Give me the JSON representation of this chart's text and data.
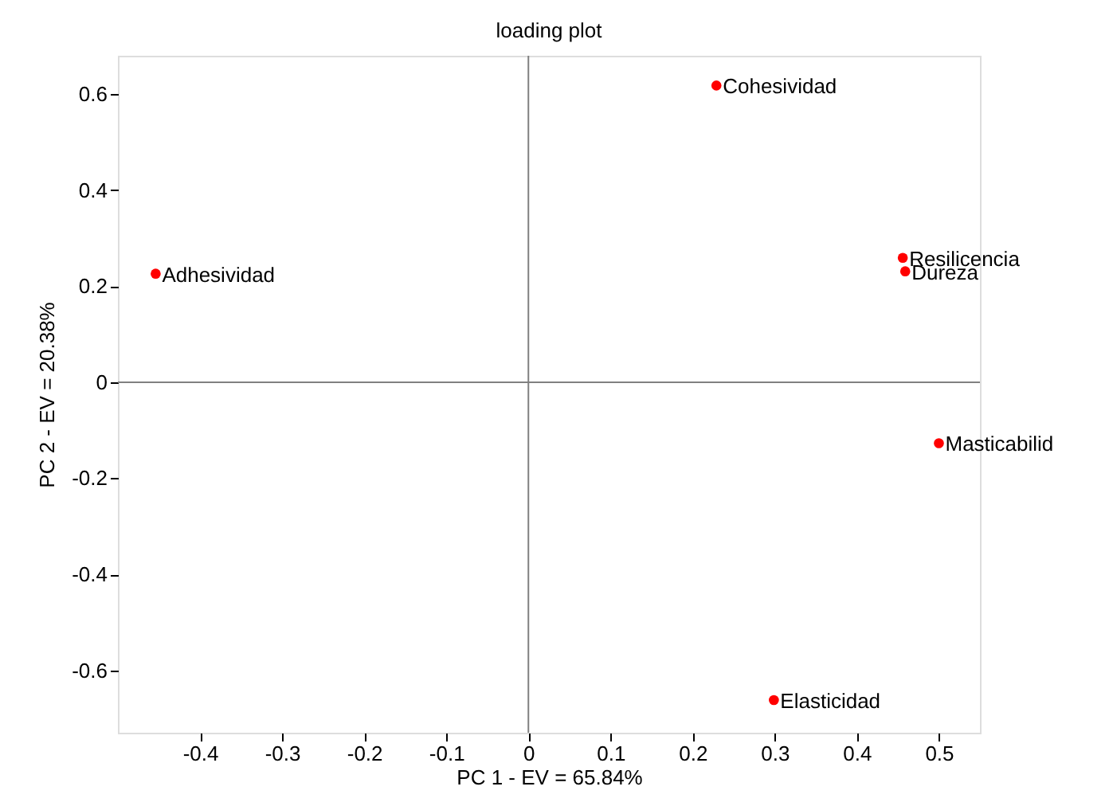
{
  "chart_data": {
    "type": "scatter",
    "title": "loading plot",
    "xlabel": "PC 1 - EV = 65.84%",
    "ylabel": "PC 2 - EV = 20.38%",
    "x": [
      -0.454,
      0.229,
      0.456,
      0.459,
      0.5,
      0.299
    ],
    "series": [
      {
        "color": "#ff0000",
        "values": [
          0.226,
          0.618,
          0.259,
          0.231,
          -0.127,
          -0.662
        ]
      }
    ],
    "annotations": [
      {
        "text": "Adhesividad",
        "x": -0.454,
        "y": 0.226
      },
      {
        "text": "Cohesividad",
        "x": 0.229,
        "y": 0.618
      },
      {
        "text": "Resilicencia",
        "x": 0.456,
        "y": 0.259
      },
      {
        "text": "Dureza",
        "x": 0.459,
        "y": 0.231
      },
      {
        "text": "Masticabilid",
        "x": 0.5,
        "y": -0.127
      },
      {
        "text": "Elasticidad",
        "x": 0.299,
        "y": -0.662
      }
    ],
    "xlim": [
      -0.5,
      0.55
    ],
    "xticks": [
      -0.4,
      -0.3,
      -0.2,
      -0.1,
      0,
      0.1,
      0.2,
      0.3,
      0.4,
      0.5
    ],
    "ylim": [
      -0.73,
      0.68
    ],
    "yticks": [
      -0.6,
      -0.4,
      -0.2,
      0,
      0.2,
      0.4,
      0.6
    ],
    "ref_lines": [
      {
        "axis": "x",
        "value": 0,
        "color": "#808080"
      },
      {
        "axis": "y",
        "value": 0,
        "color": "#808080"
      }
    ],
    "marker": "circle",
    "grid": false
  }
}
